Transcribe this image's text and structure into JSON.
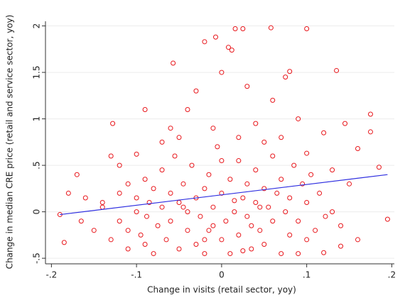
{
  "chart_data": {
    "type": "scatter",
    "x_label": "Change in visits (retail sector, yoy)",
    "y_label": "Change in median CRE price (retail and service sector, yoy)",
    "xlim": [
      -0.207,
      0.203
    ],
    "ylim": [
      -0.56,
      2.05
    ],
    "xticks": [
      {
        "value": -0.2,
        "label": "-.2"
      },
      {
        "value": -0.1,
        "label": "-.1"
      },
      0,
      {
        "value": 0.1,
        "label": ".1"
      },
      {
        "value": 0.2,
        "label": ".2"
      }
    ],
    "yticks": [
      {
        "value": -0.5,
        "label": "-.5"
      },
      0,
      {
        "value": 0.5,
        "label": ".5"
      },
      1,
      {
        "value": 1.5,
        "label": "1.5"
      },
      2
    ],
    "grid": true,
    "color": "#e8161b",
    "x": [
      0.016,
      0.025,
      0.058,
      0.1,
      -0.007,
      -0.02,
      0.008,
      0.012,
      -0.057,
      -0.128,
      0.075,
      0.08,
      0.135,
      0.175,
      0.175,
      -0.18,
      -0.19,
      -0.185,
      0.195,
      0.185,
      -0.17,
      -0.16,
      -0.165,
      0.16,
      0.145,
      0.12,
      0.1,
      0.122,
      0.14,
      0.12,
      0.09,
      -0.09,
      -0.04,
      -0.05,
      0.03,
      0.0,
      -0.03,
      0.04,
      0.07,
      0.09,
      0.06,
      -0.07,
      -0.1,
      -0.12,
      -0.11,
      -0.14,
      -0.15,
      -0.14,
      -0.13,
      -0.12,
      -0.12,
      -0.11,
      -0.1,
      -0.1,
      -0.095,
      -0.09,
      -0.088,
      -0.085,
      -0.08,
      -0.08,
      -0.075,
      -0.07,
      -0.07,
      -0.065,
      -0.06,
      -0.06,
      -0.055,
      -0.05,
      -0.05,
      -0.045,
      -0.04,
      -0.04,
      -0.035,
      -0.03,
      -0.03,
      -0.025,
      -0.02,
      -0.02,
      -0.015,
      -0.01,
      -0.01,
      -0.005,
      0.0,
      0.0,
      0.005,
      0.01,
      0.01,
      0.015,
      0.02,
      0.02,
      0.025,
      0.03,
      0.03,
      0.035,
      0.04,
      0.04,
      0.045,
      0.05,
      0.05,
      0.055,
      0.06,
      0.06,
      0.065,
      0.07,
      0.07,
      0.075,
      0.08,
      0.08,
      0.085,
      0.09,
      0.095,
      0.1,
      0.1,
      0.105,
      0.11,
      0.115,
      0.13,
      0.13,
      0.14,
      0.15,
      0.16,
      -0.13,
      -0.11,
      -0.09,
      -0.02,
      0.0,
      0.02,
      -0.01,
      0.05,
      -0.06,
      0.035,
      -0.045,
      0.015,
      0.045,
      -0.015,
      0.025
    ],
    "y": [
      1.97,
      1.97,
      1.98,
      1.97,
      1.88,
      1.83,
      1.77,
      1.74,
      1.6,
      0.95,
      1.45,
      1.51,
      1.52,
      1.05,
      0.86,
      0.2,
      -0.03,
      -0.33,
      -0.08,
      0.48,
      0.4,
      0.15,
      -0.1,
      0.68,
      0.95,
      0.85,
      0.63,
      -0.05,
      -0.37,
      -0.44,
      -0.45,
      1.1,
      1.1,
      0.8,
      1.35,
      1.5,
      1.3,
      0.95,
      0.8,
      1.0,
      1.2,
      0.75,
      0.62,
      0.5,
      0.3,
      0.1,
      -0.2,
      0.05,
      -0.3,
      0.2,
      -0.1,
      -0.4,
      0.0,
      0.15,
      -0.25,
      0.35,
      -0.05,
      0.1,
      -0.45,
      0.25,
      -0.15,
      0.05,
      0.45,
      -0.3,
      0.2,
      -0.1,
      0.6,
      -0.4,
      0.1,
      0.3,
      -0.2,
      0.0,
      0.5,
      -0.35,
      0.15,
      -0.05,
      0.25,
      -0.45,
      0.4,
      -0.15,
      0.05,
      0.7,
      -0.3,
      0.2,
      -0.1,
      0.35,
      -0.45,
      0.0,
      0.55,
      -0.25,
      0.15,
      -0.05,
      0.3,
      -0.4,
      0.1,
      0.45,
      -0.2,
      0.25,
      -0.35,
      0.05,
      0.6,
      -0.1,
      0.2,
      -0.45,
      0.35,
      0.0,
      -0.25,
      0.15,
      0.5,
      -0.1,
      0.3,
      -0.3,
      0.1,
      0.4,
      -0.2,
      0.2,
      0.0,
      0.45,
      -0.15,
      0.3,
      -0.3,
      0.6,
      -0.2,
      -0.35,
      -0.3,
      0.55,
      0.8,
      0.9,
      0.75,
      0.9,
      -0.15,
      0.05,
      0.12,
      0.05,
      -0.2,
      -0.42
    ],
    "fit": {
      "x": [
        -0.19,
        0.195
      ],
      "y": [
        -0.03,
        0.4
      ],
      "color": "#2f2fe0"
    }
  }
}
